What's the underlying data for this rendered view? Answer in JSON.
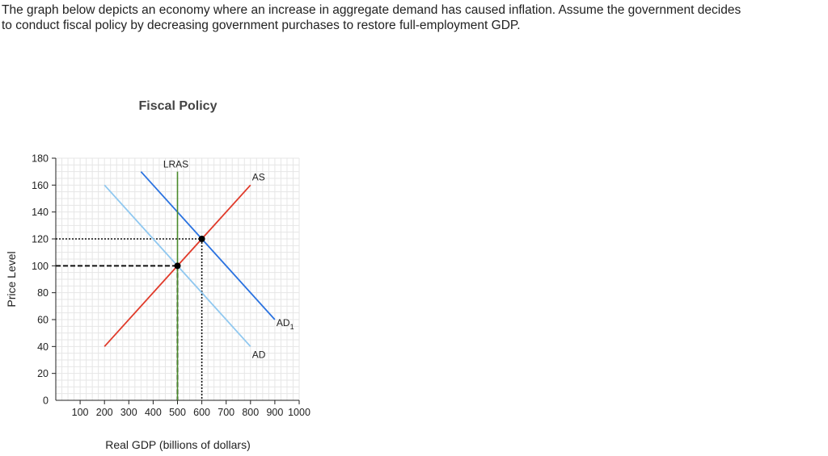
{
  "question": {
    "line1": "The graph below depicts an economy where an increase in aggregate demand has caused inflation. Assume the government decides",
    "line2": "to conduct fiscal policy by decreasing government purchases to restore full-employment GDP."
  },
  "chart_data": {
    "type": "line",
    "title": "Fiscal Policy",
    "xlabel": "Real GDP (billions of dollars)",
    "ylabel": "Price Level",
    "xlim": [
      0,
      1000
    ],
    "ylim": [
      0,
      180
    ],
    "x_ticks": [
      100,
      200,
      300,
      400,
      500,
      600,
      700,
      800,
      900,
      1000
    ],
    "y_ticks": [
      0,
      20,
      40,
      60,
      80,
      100,
      120,
      140,
      160,
      180
    ],
    "grid": true,
    "colors": {
      "AD": "#90c8f0",
      "AD1": "#2a72e0",
      "AS": "#e03a2a",
      "LRAS": "#4a8a2a",
      "grid": "#e6e6e6",
      "axis": "#222222"
    },
    "series": [
      {
        "name": "AD",
        "label": "AD",
        "points": [
          [
            200,
            160
          ],
          [
            800,
            40
          ]
        ]
      },
      {
        "name": "AD1",
        "label": "AD",
        "label_sub": "1",
        "points": [
          [
            350,
            170
          ],
          [
            900,
            60
          ]
        ]
      },
      {
        "name": "AS",
        "label": "AS",
        "points": [
          [
            200,
            40
          ],
          [
            800,
            160
          ]
        ]
      },
      {
        "name": "LRAS",
        "label": "LRAS",
        "points": [
          [
            500,
            0
          ],
          [
            500,
            170
          ]
        ]
      }
    ],
    "equilibria": [
      {
        "x": 500,
        "y": 100,
        "guide_style": "dashed"
      },
      {
        "x": 600,
        "y": 120,
        "guide_style": "dotted"
      }
    ]
  }
}
